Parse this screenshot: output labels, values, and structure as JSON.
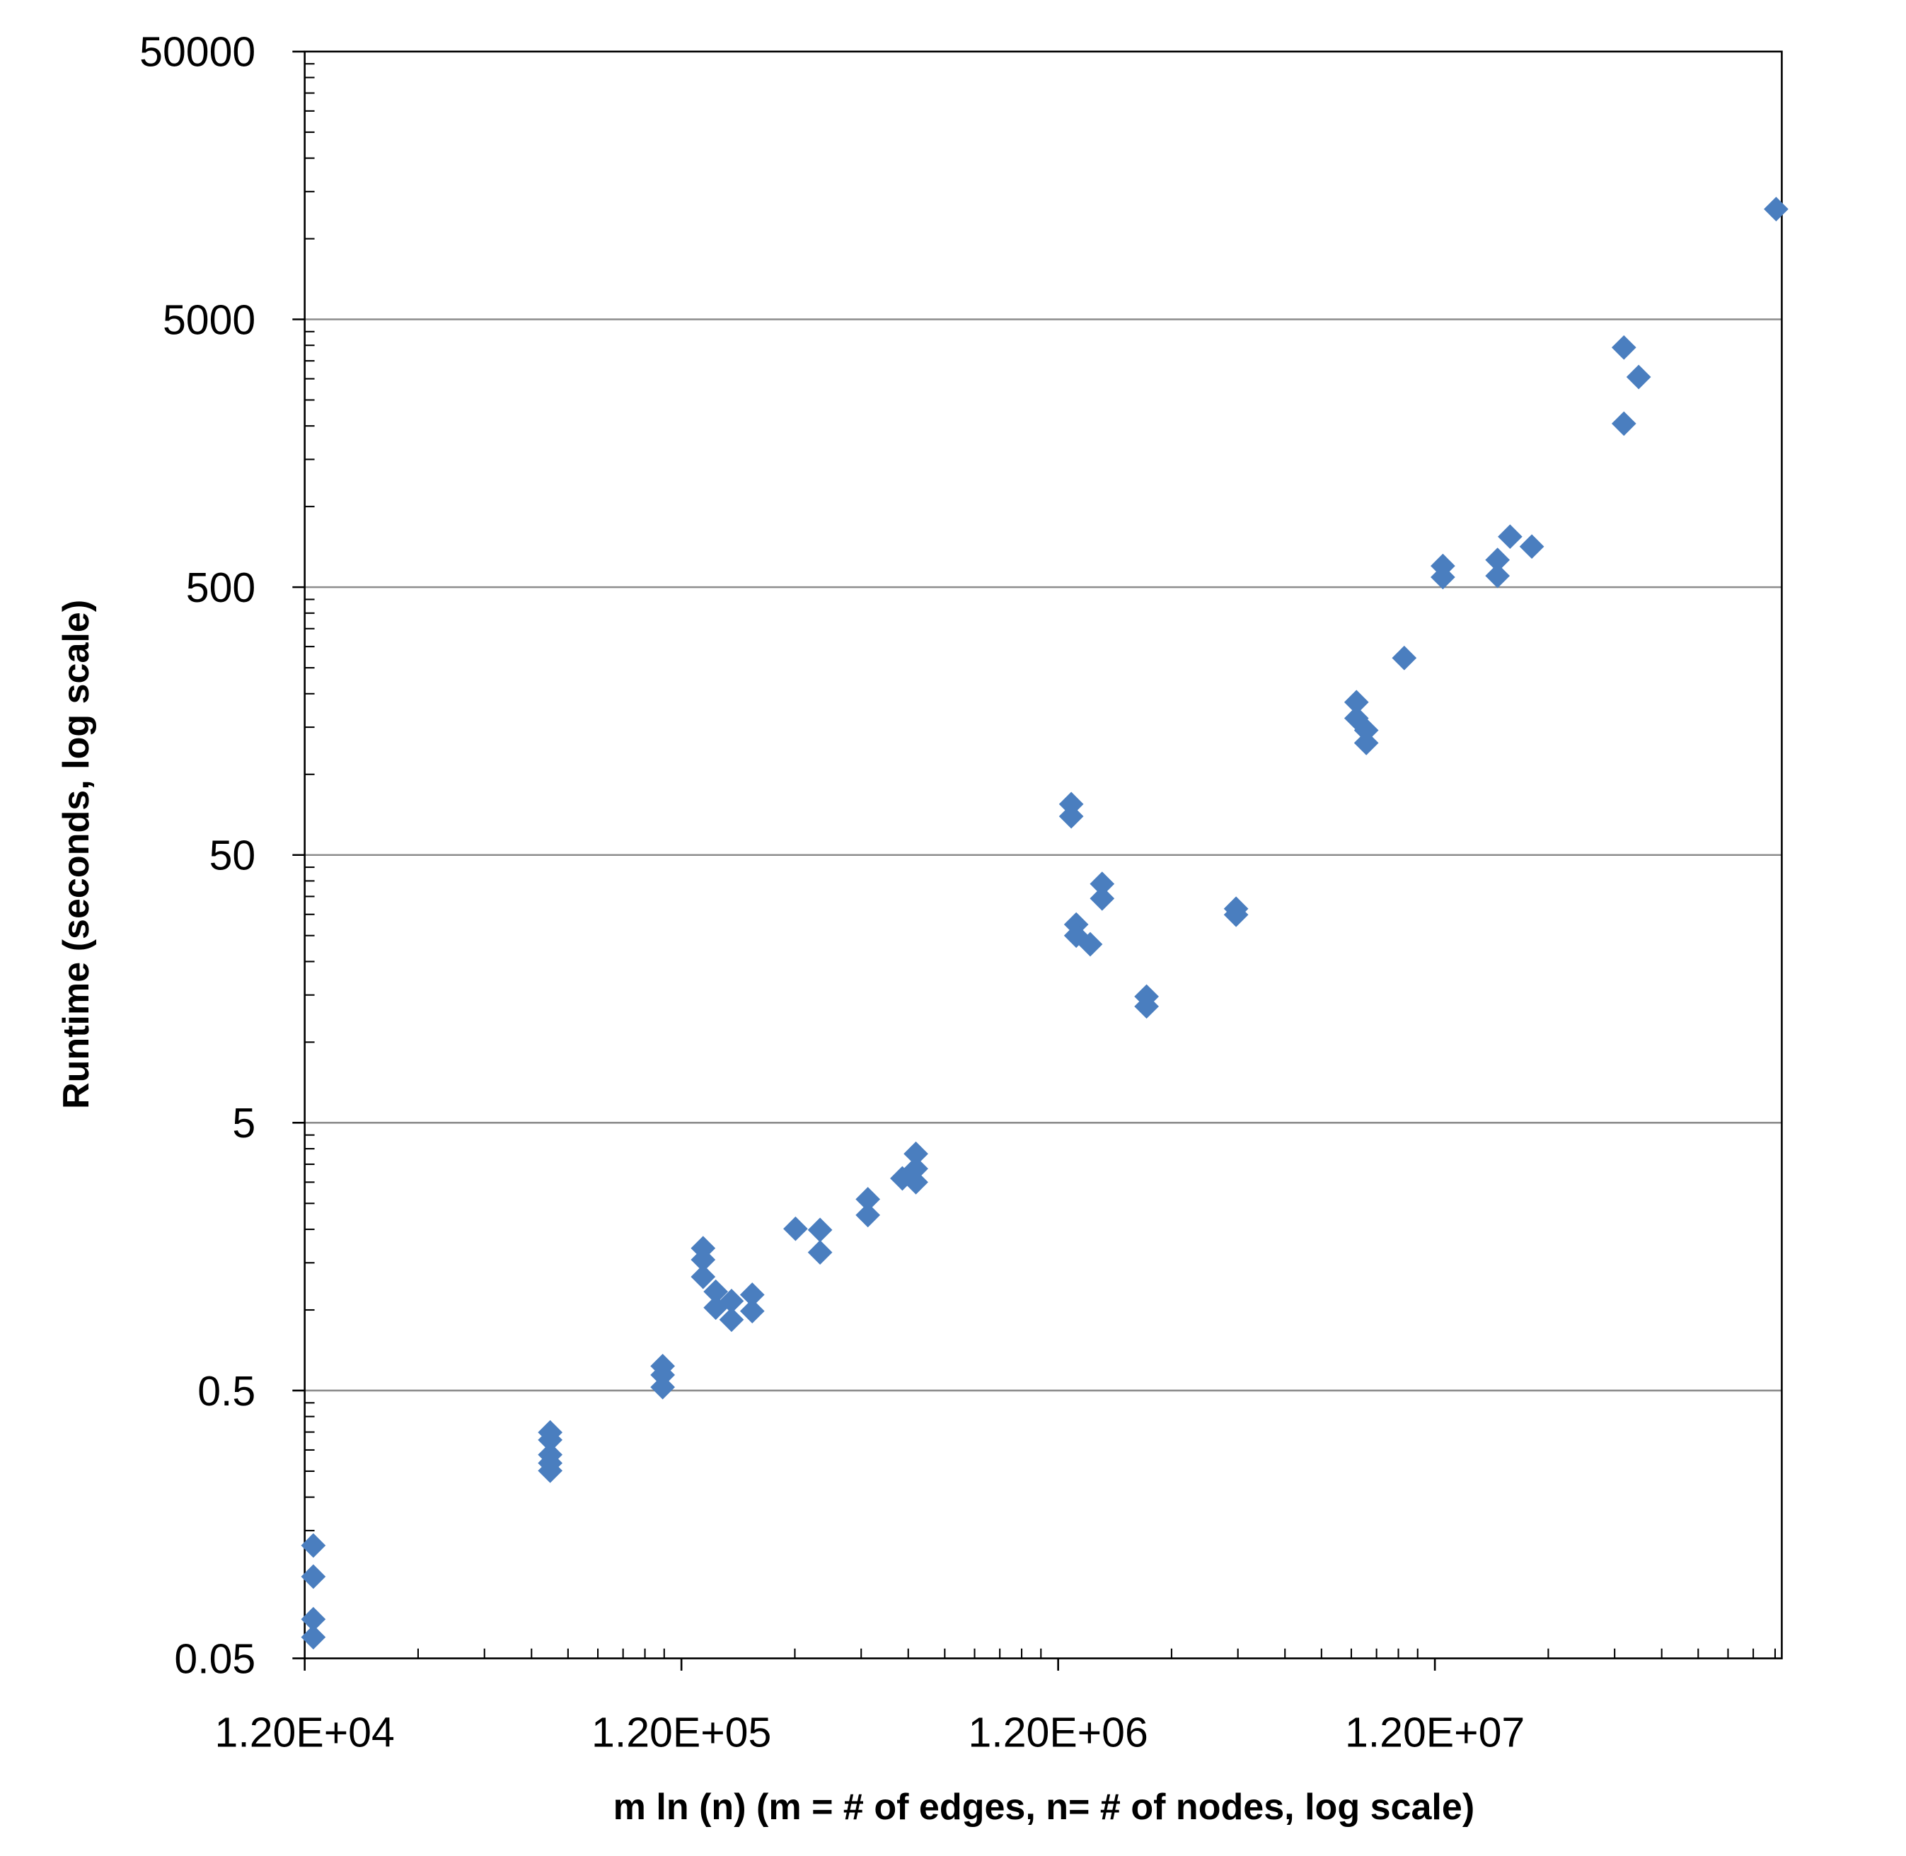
{
  "chart_data": {
    "type": "scatter",
    "xlabel": "m ln (n)  (m = # of edges, n= # of nodes, log scale)",
    "ylabel": "Runtime (seconds, log scale)",
    "xscale": "log",
    "yscale": "log",
    "grid": true,
    "color": "#4a7ebf",
    "xlim": [
      12000,
      100000000
    ],
    "ylim": [
      0.05,
      50000
    ],
    "xticks": [
      {
        "value": 12000,
        "label": "1.20E+04"
      },
      {
        "value": 120000,
        "label": "1.20E+05"
      },
      {
        "value": 1200000,
        "label": "1.20E+06"
      },
      {
        "value": 12000000,
        "label": "1.20E+07"
      }
    ],
    "yticks": [
      0.05,
      0.5,
      5,
      50,
      500,
      5000,
      50000
    ],
    "x": [
      12650,
      12650,
      12650,
      12650,
      53800,
      53800,
      53800,
      53800,
      53800,
      107000,
      107000,
      107000,
      137000,
      137000,
      137000,
      148000,
      148000,
      163000,
      163000,
      185000,
      185000,
      241000,
      280000,
      280000,
      375000,
      375000,
      463000,
      503000,
      503000,
      503000,
      1300000,
      1300000,
      1340000,
      1340000,
      1460000,
      1570000,
      1570000,
      2060000,
      2060000,
      3560000,
      3560000,
      7430000,
      7430000,
      7890000,
      7890000,
      9950000,
      12600000,
      12600000,
      17600000,
      17600000,
      19000000,
      21700000,
      38100000,
      38100000,
      41700000,
      96600000
    ],
    "values": [
      0.132,
      0.101,
      0.07,
      0.06,
      0.349,
      0.327,
      0.288,
      0.268,
      0.251,
      0.617,
      0.572,
      0.515,
      1.7,
      1.54,
      1.33,
      1.17,
      1.02,
      1.08,
      0.92,
      1.14,
      0.99,
      2.01,
      1.99,
      1.64,
      2.59,
      2.26,
      3.1,
      3.83,
      3.37,
      3.0,
      77.4,
      69.7,
      27.5,
      25.0,
      23.2,
      39.0,
      34.4,
      14.8,
      13.6,
      31.5,
      29.9,
      186,
      162,
      146,
      131,
      272,
      600,
      545,
      632,
      551,
      772,
      709,
      3925,
      2040,
      3046,
      12900
    ]
  }
}
